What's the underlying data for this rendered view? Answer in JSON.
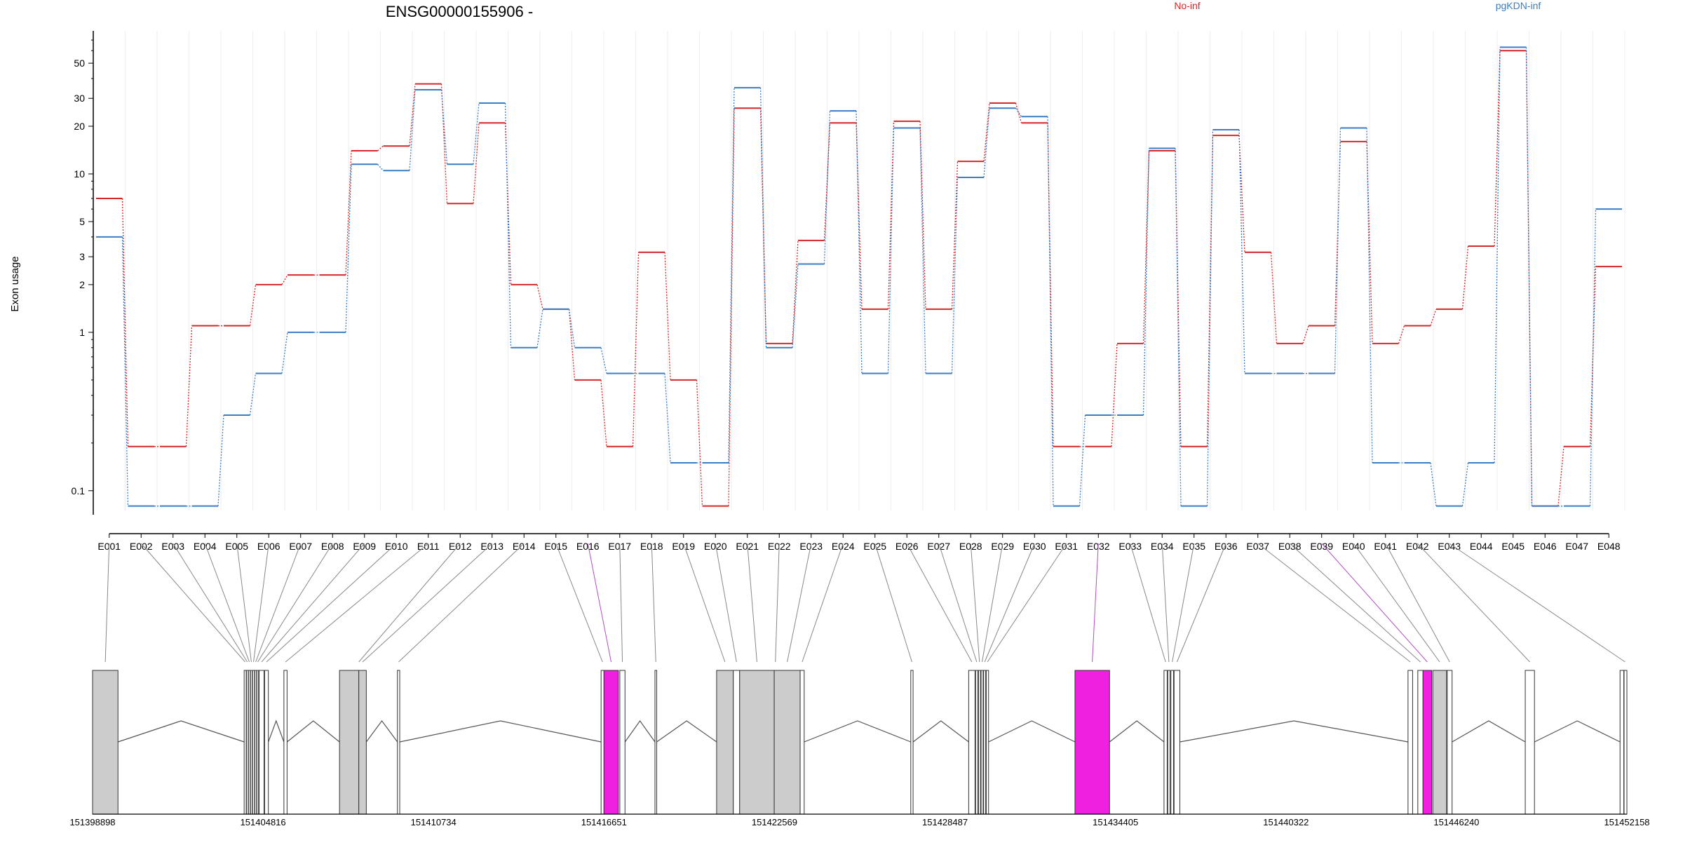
{
  "chart_data": {
    "type": "line",
    "title": "ENSG00000155906 -",
    "ylabel": "Exon usage",
    "xlabel": "",
    "scale": "log",
    "ylim": [
      0.075,
      80
    ],
    "yticks": [
      0.1,
      1,
      2,
      3,
      5,
      10,
      20,
      30,
      50
    ],
    "grid": "vertical",
    "legend_position": "top-right",
    "series_colors": {
      "No-inf": "#d62728",
      "pgKDN-inf": "#3b7dc4"
    },
    "exon_labels": [
      "E001",
      "E002",
      "E003",
      "E004",
      "E005",
      "E006",
      "E007",
      "E008",
      "E009",
      "E010",
      "E011",
      "E012",
      "E013",
      "E014",
      "E015",
      "E016",
      "E017",
      "E018",
      "E019",
      "E020",
      "E021",
      "E022",
      "E023",
      "E024",
      "E025",
      "E026",
      "E027",
      "E028",
      "E029",
      "E030",
      "E031",
      "E032",
      "E033",
      "E034",
      "E035",
      "E036",
      "E037",
      "E038",
      "E039",
      "E040",
      "E041",
      "E042",
      "E043",
      "E044",
      "E045",
      "E046",
      "E047",
      "E048"
    ],
    "series": [
      {
        "name": "No-inf",
        "values": [
          7,
          0.19,
          0.19,
          1.1,
          1.1,
          2,
          2.3,
          2.3,
          14,
          15,
          37,
          6.5,
          21,
          2,
          1.4,
          0.5,
          0.19,
          3.2,
          0.5,
          0.08,
          26,
          0.85,
          3.8,
          21,
          1.4,
          21.5,
          1.4,
          12,
          28,
          21,
          0.19,
          0.19,
          0.85,
          14,
          0.19,
          17.5,
          3.2,
          0.85,
          1.1,
          16,
          0.85,
          1.1,
          1.4,
          3.5,
          60,
          0.08,
          0.19,
          2.6
        ]
      },
      {
        "name": "pgKDN-inf",
        "values": [
          4,
          0.08,
          0.08,
          0.08,
          0.3,
          0.55,
          1,
          1,
          11.5,
          10.5,
          34,
          11.5,
          28,
          0.8,
          1.4,
          0.8,
          0.55,
          0.55,
          0.15,
          0.15,
          35,
          0.8,
          2.7,
          25,
          0.55,
          19.5,
          0.55,
          9.5,
          26,
          23,
          0.08,
          0.3,
          0.3,
          14.5,
          0.08,
          19,
          0.55,
          0.55,
          0.55,
          19.5,
          0.15,
          0.15,
          0.08,
          0.15,
          63,
          0.08,
          0.08,
          6
        ]
      }
    ],
    "gene_model": {
      "start": 151398898,
      "end": 151452158,
      "tick_labels": [
        "151398898",
        "151404816",
        "151410734",
        "151416651",
        "151422569",
        "151428487",
        "151434405",
        "151440322",
        "151446240",
        "151452158"
      ],
      "colors": {
        "exon": "#cccccc",
        "exon_alt": "#ffffff",
        "highlight": "#f020e0"
      },
      "blocks": [
        {
          "start": 151398898,
          "end": 151399780,
          "fill": "gray"
        },
        {
          "start": 151404160,
          "end": 151404230,
          "fill": "white"
        },
        {
          "start": 151404240,
          "end": 151404300,
          "fill": "white"
        },
        {
          "start": 151404310,
          "end": 151404370,
          "fill": "white"
        },
        {
          "start": 151404380,
          "end": 151404440,
          "fill": "white"
        },
        {
          "start": 151404450,
          "end": 151404520,
          "fill": "white"
        },
        {
          "start": 151404530,
          "end": 151404590,
          "fill": "white"
        },
        {
          "start": 151404600,
          "end": 151404660,
          "fill": "white"
        },
        {
          "start": 151404680,
          "end": 151404850,
          "fill": "white"
        },
        {
          "start": 151404870,
          "end": 151405000,
          "fill": "white"
        },
        {
          "start": 151405540,
          "end": 151405650,
          "fill": "white"
        },
        {
          "start": 151407470,
          "end": 151408140,
          "fill": "gray"
        },
        {
          "start": 151408140,
          "end": 151408400,
          "fill": "gray"
        },
        {
          "start": 151409480,
          "end": 151409560,
          "fill": "white"
        },
        {
          "start": 151416550,
          "end": 151416650,
          "fill": "white"
        },
        {
          "start": 151416650,
          "end": 151417150,
          "fill": "pink"
        },
        {
          "start": 151417200,
          "end": 151417380,
          "fill": "white"
        },
        {
          "start": 151418420,
          "end": 151418480,
          "fill": "white"
        },
        {
          "start": 151420560,
          "end": 151421140,
          "fill": "gray"
        },
        {
          "start": 151421140,
          "end": 151421360,
          "fill": "white"
        },
        {
          "start": 151421360,
          "end": 151422560,
          "fill": "gray"
        },
        {
          "start": 151422560,
          "end": 151423460,
          "fill": "gray"
        },
        {
          "start": 151423460,
          "end": 151423600,
          "fill": "white"
        },
        {
          "start": 151427300,
          "end": 151427380,
          "fill": "white"
        },
        {
          "start": 151429310,
          "end": 151429530,
          "fill": "white"
        },
        {
          "start": 151429550,
          "end": 151429630,
          "fill": "white"
        },
        {
          "start": 151429650,
          "end": 151429720,
          "fill": "white"
        },
        {
          "start": 151429740,
          "end": 151429810,
          "fill": "white"
        },
        {
          "start": 151429830,
          "end": 151429900,
          "fill": "white"
        },
        {
          "start": 151429920,
          "end": 151430000,
          "fill": "white"
        },
        {
          "start": 151433000,
          "end": 151434200,
          "fill": "pink"
        },
        {
          "start": 151436090,
          "end": 151436200,
          "fill": "white"
        },
        {
          "start": 151436220,
          "end": 151436300,
          "fill": "white"
        },
        {
          "start": 151436330,
          "end": 151436420,
          "fill": "white"
        },
        {
          "start": 151436440,
          "end": 151436640,
          "fill": "white"
        },
        {
          "start": 151444560,
          "end": 151444720,
          "fill": "white"
        },
        {
          "start": 151444900,
          "end": 151445080,
          "fill": "white"
        },
        {
          "start": 151445080,
          "end": 151445380,
          "fill": "pink"
        },
        {
          "start": 151445420,
          "end": 151445900,
          "fill": "gray"
        },
        {
          "start": 151445920,
          "end": 151446090,
          "fill": "white"
        },
        {
          "start": 151448630,
          "end": 151448950,
          "fill": "white"
        },
        {
          "start": 151451920,
          "end": 151452050,
          "fill": "white"
        },
        {
          "start": 151452060,
          "end": 151452158,
          "fill": "white"
        }
      ],
      "connectors": [
        {
          "exon": "E001",
          "pos": 151399340,
          "highlight": false
        },
        {
          "exon": "E002",
          "pos": 151404195,
          "highlight": false
        },
        {
          "exon": "E003",
          "pos": 151404270,
          "highlight": false
        },
        {
          "exon": "E004",
          "pos": 151404340,
          "highlight": false
        },
        {
          "exon": "E005",
          "pos": 151404410,
          "highlight": false
        },
        {
          "exon": "E006",
          "pos": 151404485,
          "highlight": false
        },
        {
          "exon": "E007",
          "pos": 151404560,
          "highlight": false
        },
        {
          "exon": "E008",
          "pos": 151404630,
          "highlight": false
        },
        {
          "exon": "E009",
          "pos": 151404765,
          "highlight": false
        },
        {
          "exon": "E010",
          "pos": 151404935,
          "highlight": false
        },
        {
          "exon": "E011",
          "pos": 151405595,
          "highlight": false
        },
        {
          "exon": "E012",
          "pos": 151408140,
          "highlight": false
        },
        {
          "exon": "E013",
          "pos": 151408270,
          "highlight": false
        },
        {
          "exon": "E014",
          "pos": 151409520,
          "highlight": false
        },
        {
          "exon": "E015",
          "pos": 151416600,
          "highlight": false
        },
        {
          "exon": "E016",
          "pos": 151416900,
          "highlight": true
        },
        {
          "exon": "E017",
          "pos": 151417290,
          "highlight": false
        },
        {
          "exon": "E018",
          "pos": 151418450,
          "highlight": false
        },
        {
          "exon": "E019",
          "pos": 151420850,
          "highlight": false
        },
        {
          "exon": "E020",
          "pos": 151421250,
          "highlight": false
        },
        {
          "exon": "E021",
          "pos": 151421960,
          "highlight": false
        },
        {
          "exon": "E022",
          "pos": 151422600,
          "highlight": false
        },
        {
          "exon": "E023",
          "pos": 151423010,
          "highlight": false
        },
        {
          "exon": "E024",
          "pos": 151423530,
          "highlight": false
        },
        {
          "exon": "E025",
          "pos": 151427340,
          "highlight": false
        },
        {
          "exon": "E026",
          "pos": 151429420,
          "highlight": false
        },
        {
          "exon": "E027",
          "pos": 151429590,
          "highlight": false
        },
        {
          "exon": "E028",
          "pos": 151429685,
          "highlight": false
        },
        {
          "exon": "E029",
          "pos": 151429775,
          "highlight": false
        },
        {
          "exon": "E030",
          "pos": 151429865,
          "highlight": false
        },
        {
          "exon": "E031",
          "pos": 151429960,
          "highlight": false
        },
        {
          "exon": "E032",
          "pos": 151433600,
          "highlight": true
        },
        {
          "exon": "E033",
          "pos": 151436145,
          "highlight": false
        },
        {
          "exon": "E034",
          "pos": 151436260,
          "highlight": false
        },
        {
          "exon": "E035",
          "pos": 151436375,
          "highlight": false
        },
        {
          "exon": "E036",
          "pos": 151436540,
          "highlight": false
        },
        {
          "exon": "E037",
          "pos": 151444640,
          "highlight": false
        },
        {
          "exon": "E038",
          "pos": 151444990,
          "highlight": false
        },
        {
          "exon": "E039",
          "pos": 151445230,
          "highlight": true
        },
        {
          "exon": "E040",
          "pos": 151445660,
          "highlight": false
        },
        {
          "exon": "E041",
          "pos": 151446005,
          "highlight": false
        },
        {
          "exon": "E042",
          "pos": 151448790,
          "highlight": false
        },
        {
          "exon": "E043",
          "pos": 151452100,
          "highlight": false
        }
      ]
    }
  }
}
